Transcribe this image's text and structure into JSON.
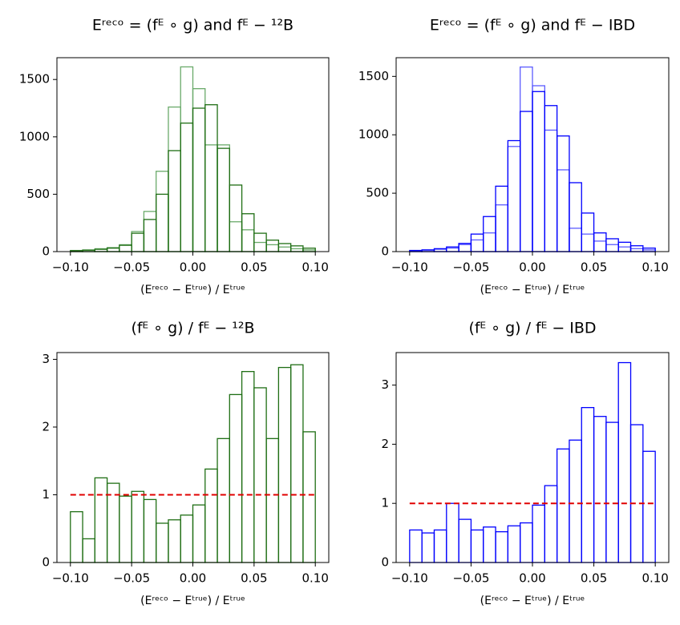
{
  "chart_data": [
    {
      "type": "histogram",
      "title": "Eʳᵉᶜᵒ = (fᴱ ∘ g) and fᴱ −  ¹²B",
      "x_label": "(Eʳᵉᶜᵒ − Eᵗʳᵘᵉ) / Eᵗʳᵘᵉ",
      "bins": [
        -0.1,
        -0.09,
        -0.08,
        -0.07,
        -0.06,
        -0.05,
        -0.04,
        -0.03,
        -0.02,
        -0.01,
        0,
        0.01,
        0.02,
        0.03,
        0.04,
        0.05,
        0.06,
        0.07,
        0.08,
        0.09,
        0.1
      ],
      "series": [
        {
          "color": "#6aaa6a",
          "values": [
            10,
            15,
            25,
            35,
            60,
            175,
            350,
            700,
            1260,
            1610,
            1420,
            930,
            930,
            260,
            190,
            80,
            60,
            40,
            25,
            15
          ]
        },
        {
          "color": "#1f6e14",
          "values": [
            8,
            12,
            20,
            30,
            55,
            160,
            280,
            500,
            880,
            1120,
            1250,
            1280,
            900,
            580,
            330,
            160,
            100,
            70,
            50,
            30
          ]
        }
      ],
      "xlim": [
        -0.111,
        0.111
      ],
      "ylim": [
        0,
        1690
      ],
      "xticks": [
        {
          "value": -0.1,
          "label": "−0.10"
        },
        {
          "value": -0.05,
          "label": "−0.05"
        },
        {
          "value": 0,
          "label": "0.00"
        },
        {
          "value": 0.05,
          "label": "0.05"
        },
        {
          "value": 0.1,
          "label": "0.10"
        }
      ],
      "yticks": [
        0,
        500,
        1000,
        1500
      ]
    },
    {
      "type": "histogram",
      "title": "Eʳᵉᶜᵒ = (fᴱ ∘ g) and fᴱ − IBD",
      "x_label": "(Eʳᵉᶜᵒ − Eᵗʳᵘᵉ) / Eᵗʳᵘᵉ",
      "bins": [
        -0.1,
        -0.09,
        -0.08,
        -0.07,
        -0.06,
        -0.05,
        -0.04,
        -0.03,
        -0.02,
        -0.01,
        0,
        0.01,
        0.02,
        0.03,
        0.04,
        0.05,
        0.06,
        0.07,
        0.08,
        0.09,
        0.1
      ],
      "series": [
        {
          "color": "#5c5cff",
          "values": [
            8,
            12,
            20,
            30,
            60,
            100,
            160,
            400,
            900,
            1580,
            1420,
            1040,
            700,
            200,
            150,
            90,
            60,
            40,
            25,
            15
          ]
        },
        {
          "color": "#0000ff",
          "values": [
            10,
            15,
            25,
            40,
            70,
            150,
            300,
            560,
            950,
            1200,
            1370,
            1250,
            990,
            590,
            330,
            160,
            110,
            80,
            50,
            30
          ]
        }
      ],
      "xlim": [
        -0.111,
        0.111
      ],
      "ylim": [
        0,
        1660
      ],
      "xticks": [
        {
          "value": -0.1,
          "label": "−0.10"
        },
        {
          "value": -0.05,
          "label": "−0.05"
        },
        {
          "value": 0,
          "label": "0.00"
        },
        {
          "value": 0.05,
          "label": "0.05"
        },
        {
          "value": 0.1,
          "label": "0.10"
        }
      ],
      "yticks": [
        0,
        500,
        1000,
        1500
      ]
    },
    {
      "type": "histogram",
      "title": "(fᴱ ∘ g) / fᴱ −  ¹²B",
      "x_label": "(Eʳᵉᶜᵒ − Eᵗʳᵘᵉ) / Eᵗʳᵘᵉ",
      "bins": [
        -0.1,
        -0.09,
        -0.08,
        -0.07,
        -0.06,
        -0.05,
        -0.04,
        -0.03,
        -0.02,
        -0.01,
        0,
        0.01,
        0.02,
        0.03,
        0.04,
        0.05,
        0.06,
        0.07,
        0.08,
        0.09,
        0.1
      ],
      "series": [
        {
          "color": "#1f6e14",
          "values": [
            0.75,
            0.35,
            1.25,
            1.17,
            0.98,
            1.05,
            0.93,
            0.58,
            0.63,
            0.7,
            0.85,
            1.38,
            1.83,
            2.48,
            2.82,
            2.58,
            1.83,
            2.88,
            2.92,
            1.93
          ]
        }
      ],
      "reference_line": 1,
      "reference_color": "#e00000",
      "xlim": [
        -0.111,
        0.111
      ],
      "ylim": [
        0,
        3.1
      ],
      "xticks": [
        {
          "value": -0.1,
          "label": "−0.10"
        },
        {
          "value": -0.05,
          "label": "−0.05"
        },
        {
          "value": 0,
          "label": "0.00"
        },
        {
          "value": 0.05,
          "label": "0.05"
        },
        {
          "value": 0.1,
          "label": "0.10"
        }
      ],
      "yticks": [
        0,
        1,
        2,
        3
      ]
    },
    {
      "type": "histogram",
      "title": "(fᴱ ∘ g) / fᴱ − IBD",
      "x_label": "(Eʳᵉᶜᵒ − Eᵗʳᵘᵉ) / Eᵗʳᵘᵉ",
      "bins": [
        -0.1,
        -0.09,
        -0.08,
        -0.07,
        -0.06,
        -0.05,
        -0.04,
        -0.03,
        -0.02,
        -0.01,
        0,
        0.01,
        0.02,
        0.03,
        0.04,
        0.05,
        0.06,
        0.07,
        0.08,
        0.09,
        0.1
      ],
      "series": [
        {
          "color": "#0000ff",
          "values": [
            0.55,
            0.5,
            0.55,
            1.0,
            0.73,
            0.55,
            0.6,
            0.52,
            0.62,
            0.67,
            0.97,
            1.3,
            1.92,
            2.07,
            2.62,
            2.47,
            2.37,
            3.38,
            2.33,
            1.88
          ]
        }
      ],
      "reference_line": 1,
      "reference_color": "#e00000",
      "xlim": [
        -0.111,
        0.111
      ],
      "ylim": [
        0,
        3.55
      ],
      "xticks": [
        {
          "value": -0.1,
          "label": "−0.10"
        },
        {
          "value": -0.05,
          "label": "−0.05"
        },
        {
          "value": 0,
          "label": "0.00"
        },
        {
          "value": 0.05,
          "label": "0.05"
        },
        {
          "value": 0.1,
          "label": "0.10"
        }
      ],
      "yticks": [
        0,
        1,
        2,
        3
      ]
    }
  ]
}
